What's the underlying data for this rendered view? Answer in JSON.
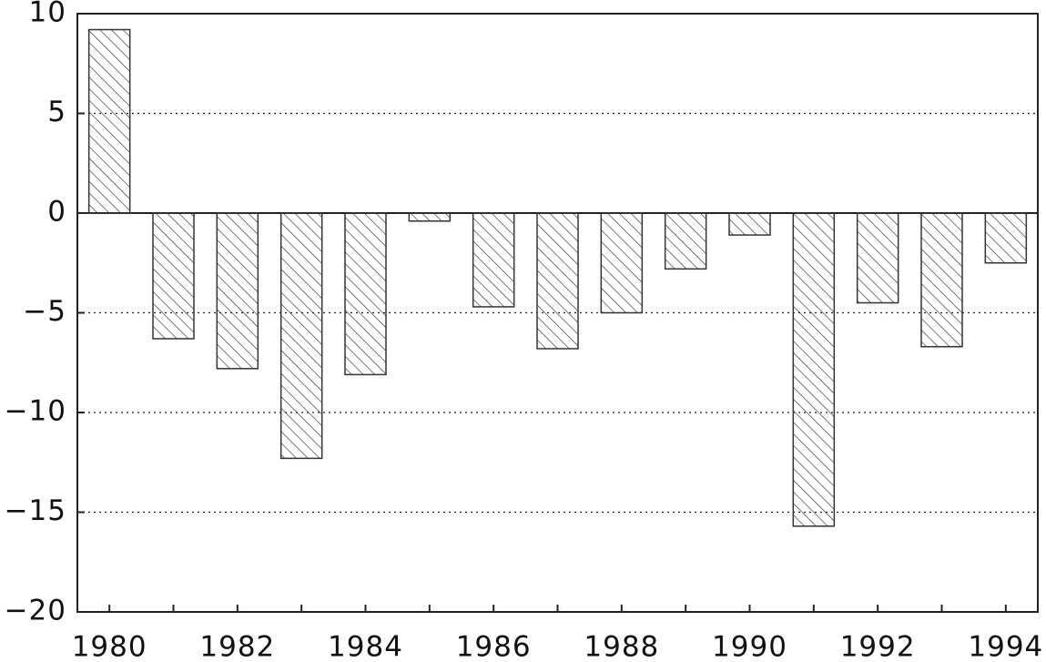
{
  "chart_data": {
    "type": "bar",
    "categories": [
      "1980",
      null,
      "1982",
      null,
      "1984",
      null,
      "1986",
      null,
      "1988",
      null,
      "1990",
      null,
      "1992",
      null,
      "1994"
    ],
    "values": [
      9.2,
      -6.3,
      -7.8,
      -12.3,
      -8.1,
      -0.4,
      -4.7,
      -6.8,
      -5.0,
      -2.8,
      -1.1,
      -15.7,
      -4.5,
      -6.7,
      -2.5
    ],
    "color": "#333333",
    "ylim": [
      -20,
      10
    ],
    "yticks": [
      {
        "value": -20,
        "label": "−20"
      },
      {
        "value": -15,
        "label": "−15"
      },
      {
        "value": -10,
        "label": "−10"
      },
      {
        "value": -5,
        "label": "−5"
      },
      0,
      5,
      10
    ],
    "grid": true
  }
}
